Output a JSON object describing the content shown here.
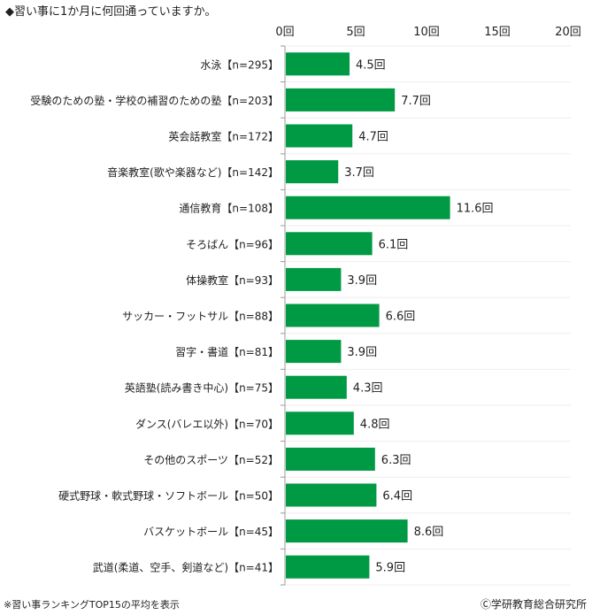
{
  "chart_data": {
    "type": "bar",
    "orientation": "horizontal",
    "title": "◆習い事に1か月に何回通っていますか。",
    "categories": [
      "水泳【n=295】",
      "受験のための塾・学校の補習のための塾【n=203】",
      "英会話教室【n=172】",
      "音楽教室(歌や楽器など)【n=142】",
      "通信教育【n=108】",
      "そろばん【n=96】",
      "体操教室【n=93】",
      "サッカー・フットサル【n=88】",
      "習字・書道【n=81】",
      "英語塾(読み書き中心)【n=75】",
      "ダンス(バレエ以外)【n=70】",
      "その他のスポーツ【n=52】",
      "硬式野球・軟式野球・ソフトボール【n=50】",
      "バスケットボール【n=45】",
      "武道(柔道、空手、剣道など)【n=41】"
    ],
    "values": [
      4.5,
      7.7,
      4.7,
      3.7,
      11.6,
      6.1,
      3.9,
      6.6,
      3.9,
      4.3,
      4.8,
      6.3,
      6.4,
      8.6,
      5.9
    ],
    "value_labels": [
      "4.5回",
      "7.7回",
      "4.7回",
      "3.7回",
      "11.6回",
      "6.1回",
      "3.9回",
      "6.6回",
      "3.9回",
      "4.3回",
      "4.8回",
      "6.3回",
      "6.4回",
      "8.6回",
      "5.9回"
    ],
    "xlim": [
      0,
      20
    ],
    "xticks": [
      0,
      5,
      10,
      15,
      20
    ],
    "xtick_labels": [
      "0回",
      "5回",
      "10回",
      "15回",
      "20回"
    ],
    "bar_color": "#009944",
    "grid": true
  },
  "footnote": "※習い事ランキングTOP15の平均を表示",
  "copyright": "Ⓒ学研教育総合研究所"
}
